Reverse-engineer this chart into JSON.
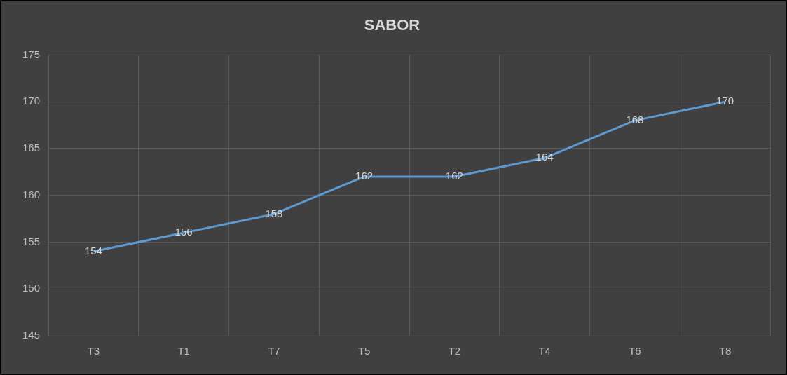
{
  "chart_data": {
    "type": "line",
    "title": "SABOR",
    "categories": [
      "T3",
      "T1",
      "T7",
      "T5",
      "T2",
      "T4",
      "T6",
      "T8"
    ],
    "series": [
      {
        "color": "#5b9bd5",
        "values": [
          154,
          156,
          158,
          162,
          162,
          164,
          168,
          170
        ]
      }
    ],
    "ylim": [
      145,
      175
    ],
    "yticks": [
      145,
      150,
      155,
      160,
      165,
      170,
      175
    ],
    "grid": true,
    "legend": false,
    "marker": "none",
    "data_labels": true
  }
}
